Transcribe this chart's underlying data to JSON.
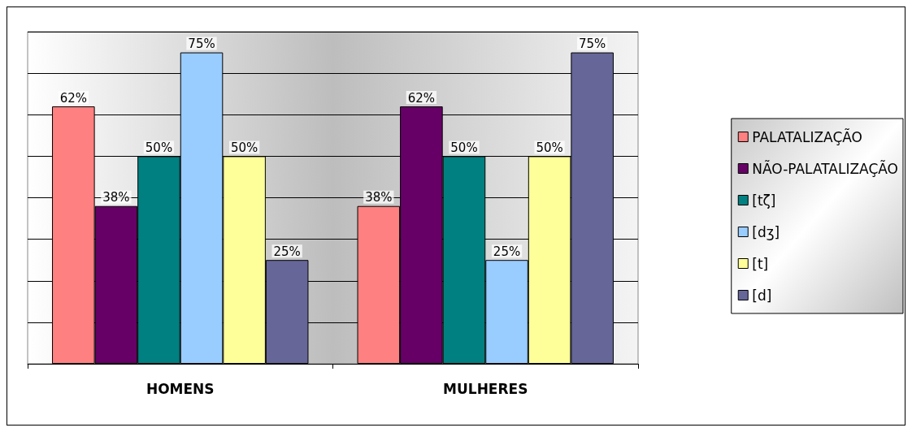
{
  "chart_data": {
    "type": "bar",
    "categories": [
      "HOMENS",
      "MULHERES"
    ],
    "series": [
      {
        "name": "PALATALIZAÇÃO",
        "color": "#ff8080",
        "values": [
          62,
          38
        ],
        "value_labels": [
          "62%",
          "38%"
        ]
      },
      {
        "name": "NÃO-PALATALIZAÇÃO",
        "color": "#660066",
        "values": [
          38,
          62
        ],
        "value_labels": [
          "38%",
          "62%"
        ]
      },
      {
        "name": "[tζ]",
        "color": "#008080",
        "values": [
          50,
          50
        ],
        "value_labels": [
          "50%",
          "50%"
        ]
      },
      {
        "name": "[dʒ]",
        "color": "#99ccff",
        "values": [
          75,
          25
        ],
        "value_labels": [
          "75%",
          "25%"
        ]
      },
      {
        "name": "[t]",
        "color": "#ffff99",
        "values": [
          50,
          50
        ],
        "value_labels": [
          "50%",
          "50%"
        ]
      },
      {
        "name": "[d]",
        "color": "#666699",
        "values": [
          25,
          75
        ],
        "value_labels": [
          "25%",
          "75%"
        ]
      }
    ],
    "ylim": [
      0,
      80
    ],
    "yticks": [
      {
        "value": 0,
        "label": null
      },
      {
        "value": 10,
        "label": null
      },
      {
        "value": 20,
        "label": null
      },
      {
        "value": 30,
        "label": null
      },
      {
        "value": 40,
        "label": null
      },
      {
        "value": 50,
        "label": null
      },
      {
        "value": 60,
        "label": null
      },
      {
        "value": 70,
        "label": null
      },
      {
        "value": 80,
        "label": null
      }
    ],
    "grid": "y",
    "legend": "right",
    "tick_labels": "x"
  }
}
